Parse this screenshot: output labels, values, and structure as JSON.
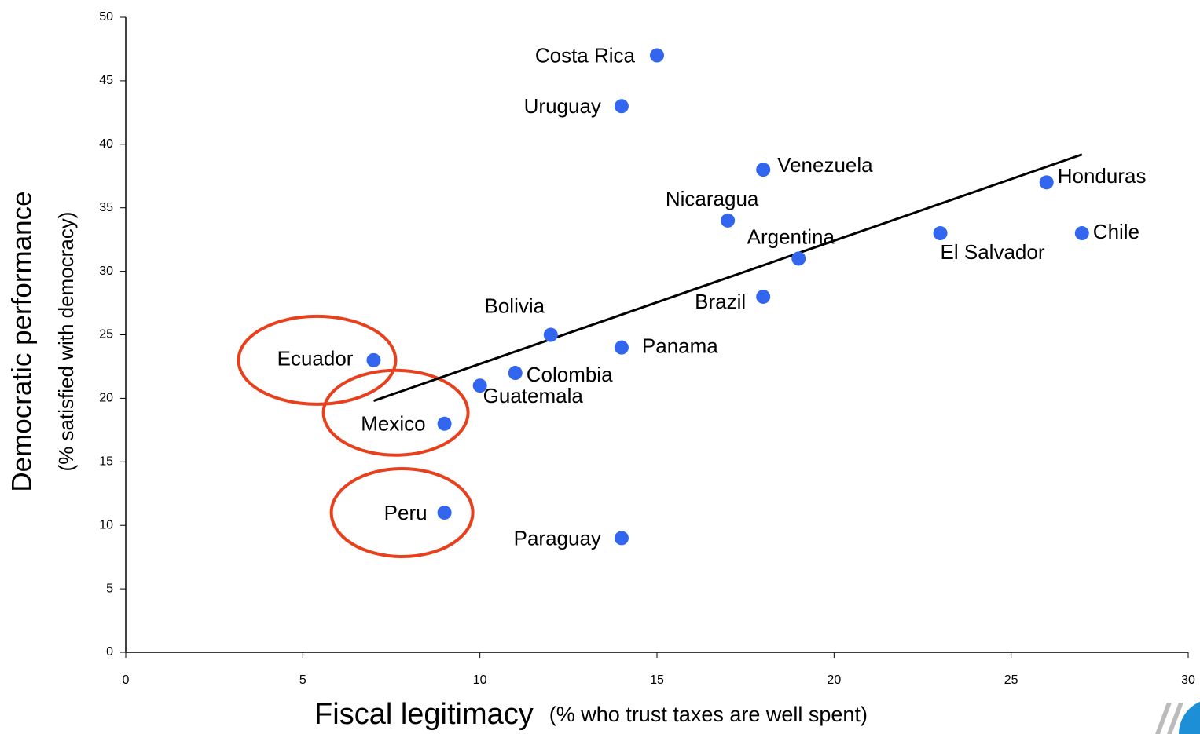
{
  "chart_data": {
    "type": "scatter",
    "xlabel": "Fiscal legitimacy",
    "xlabel_note": "(% who trust taxes are well spent)",
    "ylabel": "Democratic performance",
    "ylabel_note": "(% satisfied with democracy)",
    "labels": [
      "Costa Rica",
      "Uruguay",
      "Venezuela",
      "Honduras",
      "Nicaragua",
      "Chile",
      "El Salvador",
      "Argentina",
      "Brazil",
      "Bolivia",
      "Panama",
      "Ecuador",
      "Colombia",
      "Guatemala",
      "Mexico",
      "Peru",
      "Paraguay"
    ],
    "x": [
      15,
      14,
      18,
      26,
      17,
      27,
      23,
      19,
      18,
      12,
      14,
      7,
      11,
      10,
      9,
      9,
      14
    ],
    "y": [
      47,
      43,
      38,
      37,
      34,
      33,
      33,
      31,
      28,
      25,
      24,
      23,
      22,
      21,
      18,
      11,
      9
    ],
    "color": "#3366ee",
    "trendline": {
      "x": [
        7,
        27
      ],
      "y": [
        19.8,
        39.2
      ],
      "color": "#000000"
    },
    "highlighted": [
      11,
      14,
      15
    ],
    "highlight_color": "#e8401c",
    "xlim": [
      0,
      30
    ],
    "xticks": [
      0,
      5,
      10,
      15,
      20,
      25,
      30
    ],
    "ylim": [
      0,
      50
    ],
    "yticks": [
      0,
      5,
      10,
      15,
      20,
      25,
      30,
      35,
      40,
      45,
      50
    ],
    "grid": false
  }
}
